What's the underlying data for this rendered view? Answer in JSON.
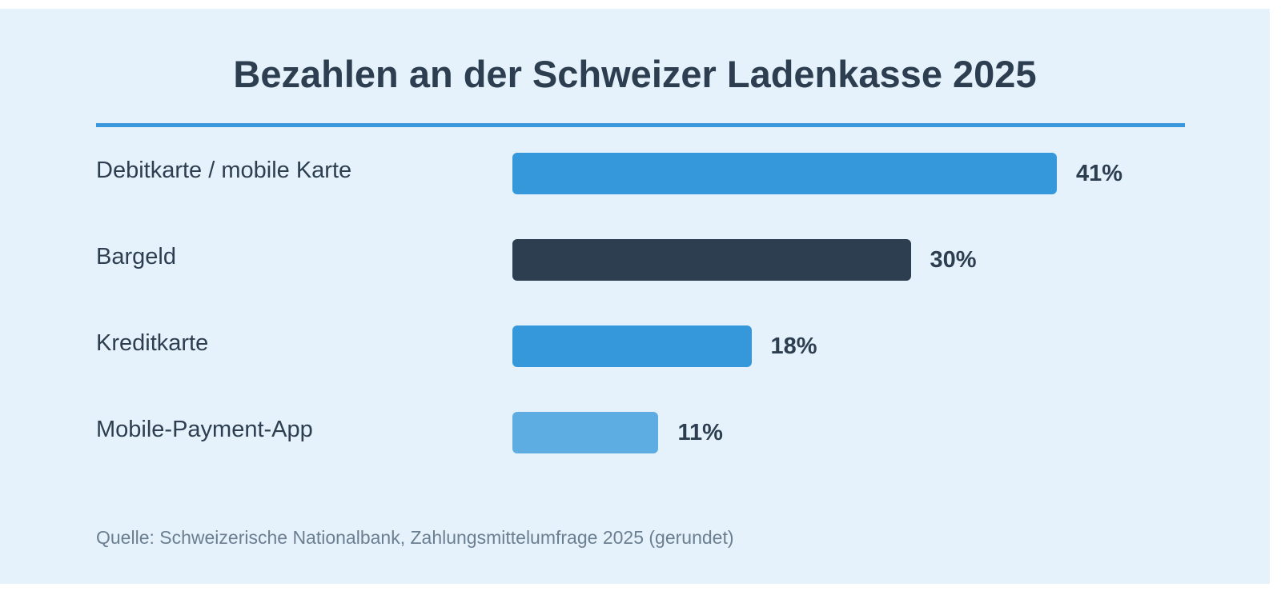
{
  "chart_data": {
    "type": "bar",
    "orientation": "horizontal",
    "title": "Bezahlen an der Schweizer Ladenkasse 2025",
    "categories": [
      "Debitkarte / mobile Karte",
      "Bargeld",
      "Kreditkarte",
      "Mobile-Payment-App"
    ],
    "values": [
      41,
      30,
      18,
      11
    ],
    "value_labels": [
      "41%",
      "30%",
      "18%",
      "11%"
    ],
    "bar_colors": [
      "#3498db",
      "#2c3e50",
      "#3498db",
      "#5dade2"
    ],
    "xlim": [
      0,
      41
    ],
    "grid": false,
    "source": "Quelle: Schweizerische Nationalbank, Zahlungsmittelumfrage 2025 (gerundet)"
  },
  "colors": {
    "background": "#e5f2fb",
    "accent": "#3a97dc",
    "text": "#2c3e50",
    "source_text": "#6b7f91"
  }
}
